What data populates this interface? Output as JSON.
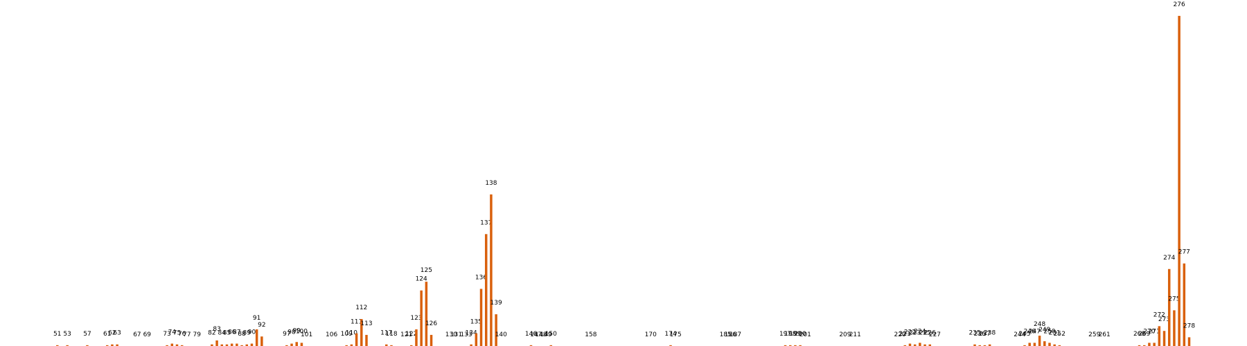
{
  "chart_data": {
    "type": "bar",
    "color": "#d9600c",
    "x": [
      51,
      53,
      57,
      61,
      62,
      63,
      67,
      69,
      73,
      74,
      75,
      76,
      77,
      79,
      82,
      83,
      84,
      85,
      86,
      87,
      88,
      89,
      90,
      91,
      92,
      97,
      98,
      99,
      100,
      101,
      106,
      109,
      110,
      111,
      112,
      113,
      117,
      118,
      121,
      122,
      123,
      124,
      125,
      126,
      130,
      131,
      133,
      134,
      135,
      136,
      137,
      138,
      139,
      140,
      146,
      147,
      148,
      149,
      150,
      158,
      170,
      174,
      175,
      185,
      186,
      187,
      197,
      198,
      199,
      200,
      201,
      209,
      211,
      220,
      221,
      222,
      223,
      224,
      225,
      226,
      227,
      235,
      236,
      237,
      238,
      244,
      245,
      246,
      247,
      248,
      249,
      250,
      251,
      252,
      259,
      261,
      268,
      269,
      270,
      271,
      272,
      273,
      274,
      275,
      276,
      277,
      278
    ],
    "values": [
      1,
      1,
      1,
      1,
      2,
      2,
      0,
      0,
      1,
      3,
      2,
      1,
      0,
      0,
      2,
      7,
      2,
      2,
      3,
      3,
      1,
      2,
      3,
      21,
      12,
      1,
      3,
      5,
      4,
      0,
      0,
      1,
      2,
      16,
      34,
      14,
      2,
      1,
      0,
      1,
      21,
      70,
      81,
      14,
      0,
      0,
      0,
      2,
      16,
      72,
      141,
      191,
      40,
      0,
      1,
      0,
      0,
      0,
      1,
      0,
      0,
      1,
      0,
      0,
      0,
      0,
      1,
      1,
      1,
      1,
      0,
      0,
      0,
      0,
      1,
      3,
      2,
      4,
      2,
      2,
      0,
      2,
      1,
      1,
      2,
      0,
      1,
      4,
      4,
      13,
      6,
      4,
      2,
      1,
      0,
      0,
      1,
      1,
      4,
      4,
      25,
      19,
      97,
      45,
      416,
      104,
      11
    ],
    "xlim": [
      39.5,
      289.6
    ],
    "ylim": [
      0,
      436
    ]
  }
}
